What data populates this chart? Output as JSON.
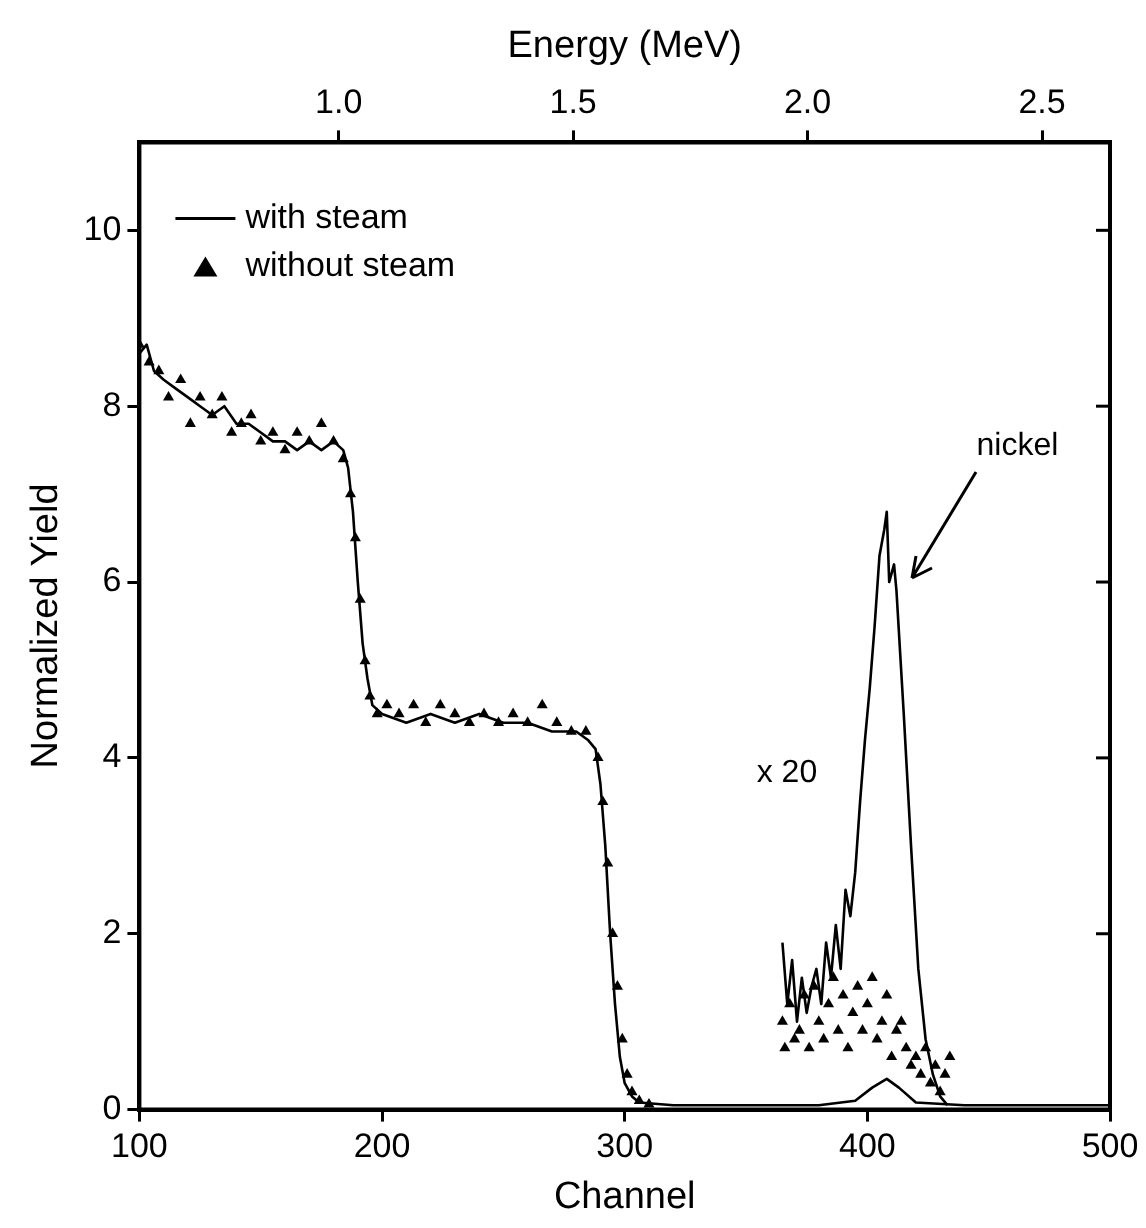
{
  "chart_data": {
    "type": "line",
    "xlabel": "Channel",
    "x2label": "Energy (MeV)",
    "ylabel": "Normalized Yield",
    "xlim": [
      100,
      500
    ],
    "xticks": [
      100,
      200,
      300,
      400,
      500
    ],
    "x2lim": [
      0.575,
      2.645
    ],
    "x2ticks": [
      {
        "value": 1,
        "label": "1.0"
      },
      {
        "value": 1.5,
        "label": "1.5"
      },
      {
        "value": 2,
        "label": "2.0"
      },
      {
        "value": 2.5,
        "label": "2.5"
      }
    ],
    "ylim": [
      0,
      11
    ],
    "yticks": [
      0,
      2,
      4,
      6,
      8,
      10
    ],
    "grid": false,
    "legend": "top left",
    "annotations": [
      "x 20",
      {
        "text": "nickel",
        "x": 412,
        "y": 6.0
      }
    ],
    "series": [
      {
        "name": "with steam",
        "color": "#000000",
        "marker": "none",
        "x": [
          100,
          103,
          106,
          110,
          115,
          120,
          125,
          130,
          135,
          140,
          145,
          150,
          155,
          160,
          165,
          170,
          175,
          180,
          184,
          186,
          188,
          190,
          192,
          194,
          196,
          200,
          210,
          220,
          230,
          240,
          250,
          260,
          270,
          280,
          285,
          288,
          290,
          292,
          294,
          296,
          298,
          300,
          303,
          306,
          320,
          350,
          380,
          395,
          402,
          408,
          413,
          420,
          440,
          470,
          500
        ],
        "values": [
          8.6,
          8.7,
          8.4,
          8.3,
          8.2,
          8.1,
          8.0,
          7.9,
          8.0,
          7.8,
          7.8,
          7.7,
          7.6,
          7.6,
          7.5,
          7.6,
          7.5,
          7.6,
          7.5,
          7.3,
          6.8,
          6.0,
          5.3,
          4.9,
          4.6,
          4.5,
          4.4,
          4.5,
          4.4,
          4.5,
          4.4,
          4.4,
          4.3,
          4.3,
          4.2,
          4.1,
          3.7,
          3.0,
          2.0,
          1.2,
          0.6,
          0.3,
          0.15,
          0.08,
          0.05,
          0.05,
          0.05,
          0.1,
          0.25,
          0.35,
          0.25,
          0.08,
          0.05,
          0.05,
          0.05
        ]
      },
      {
        "color": "#000000",
        "marker": "none",
        "x": [
          365,
          367,
          369,
          371,
          373,
          375,
          377,
          379,
          381,
          383,
          385,
          387,
          389,
          391,
          393,
          395,
          397,
          399,
          401,
          403,
          405,
          407,
          408,
          409,
          411,
          412,
          415,
          418,
          421,
          424,
          427,
          430,
          433
        ],
        "values": [
          1.9,
          1.2,
          1.7,
          1.0,
          1.5,
          1.1,
          1.4,
          1.6,
          1.2,
          1.9,
          1.5,
          2.1,
          1.6,
          2.5,
          2.2,
          2.7,
          3.5,
          4.2,
          4.8,
          5.5,
          6.3,
          6.6,
          6.8,
          6.0,
          6.2,
          5.9,
          4.5,
          3.0,
          1.6,
          0.8,
          0.4,
          0.15,
          0.05
        ]
      },
      {
        "name": "without steam",
        "type": "scatter",
        "color": "#000000",
        "marker": "triangle",
        "x": [
          100,
          104,
          108,
          112,
          117,
          121,
          125,
          130,
          134,
          138,
          142,
          146,
          150,
          155,
          160,
          165,
          170,
          175,
          180,
          184,
          187,
          189,
          191,
          193,
          195,
          198,
          202,
          207,
          213,
          218,
          224,
          230,
          236,
          242,
          248,
          254,
          260,
          266,
          272,
          278,
          284,
          289,
          291,
          293,
          295,
          297,
          299,
          301,
          303,
          306,
          310,
          365,
          366,
          368,
          370,
          372,
          374,
          376,
          378,
          380,
          382,
          384,
          386,
          388,
          390,
          392,
          394,
          396,
          398,
          400,
          402,
          404,
          406,
          408,
          410,
          412,
          414,
          416,
          418,
          420,
          422,
          424,
          426,
          428,
          430,
          432,
          434
        ],
        "values": [
          8.7,
          8.5,
          8.4,
          8.1,
          8.3,
          7.8,
          8.1,
          7.9,
          8.1,
          7.7,
          7.8,
          7.9,
          7.6,
          7.7,
          7.5,
          7.7,
          7.6,
          7.8,
          7.6,
          7.4,
          7.0,
          6.5,
          5.8,
          5.1,
          4.7,
          4.5,
          4.6,
          4.5,
          4.6,
          4.4,
          4.6,
          4.5,
          4.4,
          4.5,
          4.4,
          4.5,
          4.4,
          4.6,
          4.4,
          4.3,
          4.3,
          4.0,
          3.5,
          2.8,
          2.0,
          1.4,
          0.8,
          0.4,
          0.2,
          0.1,
          0.06,
          1.0,
          0.7,
          1.2,
          0.8,
          0.9,
          1.3,
          0.7,
          1.4,
          1.0,
          0.8,
          1.2,
          1.5,
          0.9,
          1.3,
          0.7,
          1.1,
          1.4,
          0.9,
          1.2,
          1.5,
          0.8,
          1.0,
          1.3,
          0.6,
          0.9,
          1.0,
          0.7,
          0.5,
          0.6,
          0.4,
          0.7,
          0.3,
          0.5,
          0.2,
          0.4,
          0.6
        ]
      }
    ]
  }
}
